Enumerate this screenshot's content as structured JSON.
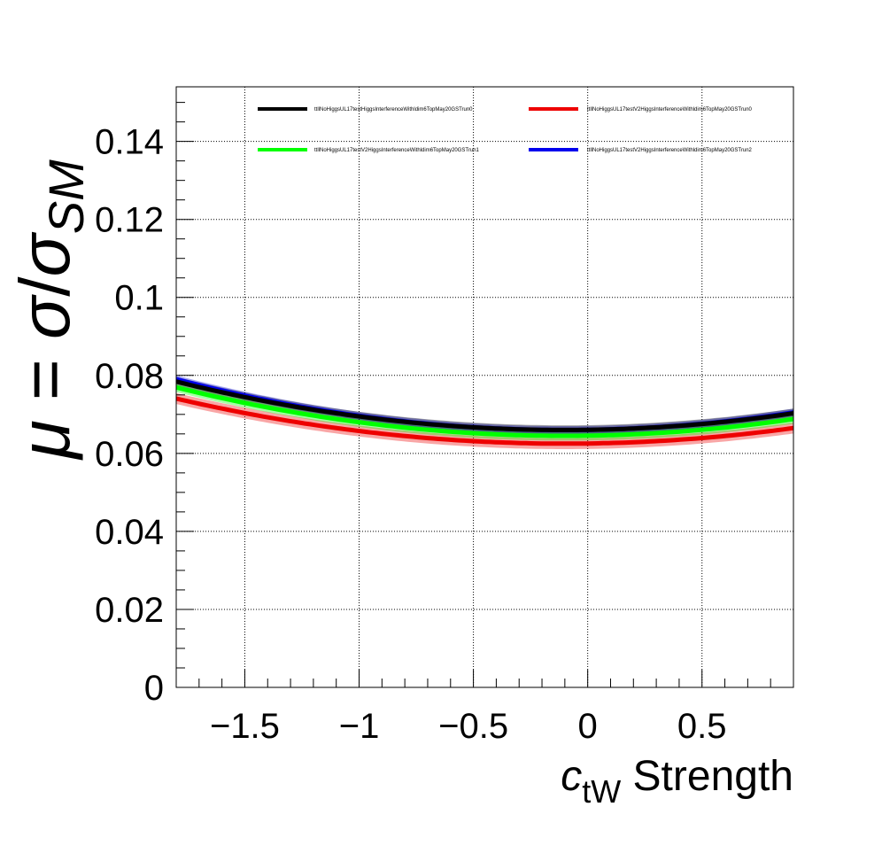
{
  "chart_data": {
    "type": "line",
    "xlabel": {
      "symbol": "c",
      "subscript": "tW",
      "suffix": " Strength"
    },
    "ylabel": {
      "mu": "μ",
      "eq": " = ",
      "sigma": "σ",
      "slash": "/",
      "sigma2": "σ",
      "subscript": "SM"
    },
    "xlim": [
      -1.8,
      0.9
    ],
    "ylim": [
      0,
      0.154
    ],
    "xticks": [
      -1.5,
      -1,
      -0.5,
      0,
      0.5
    ],
    "xtick_labels": [
      "−1.5",
      "−1",
      "−0.5",
      "0",
      "0.5"
    ],
    "yticks": [
      0,
      0.02,
      0.04,
      0.06,
      0.08,
      0.1,
      0.12,
      0.14
    ],
    "ytick_labels": [
      "0",
      "0.02",
      "0.04",
      "0.06",
      "0.08",
      "0.1",
      "0.12",
      "0.14"
    ],
    "grid": true,
    "legend": "top",
    "series": [
      {
        "name": "ttllNoHiggsUL17testHiggsInterferenceWithldim6TopMay20GSTrun0",
        "color": "#000000",
        "a": 0.066,
        "x0": -0.1,
        "c": 0.0043,
        "band": 0.0012
      },
      {
        "name": "ttllNoHiggsUL17testV2HiggsInterferenceWithldim6TopMay20GSTrun0",
        "color": "#ee0000",
        "a": 0.0625,
        "x0": -0.1,
        "c": 0.004,
        "band": 0.0014
      },
      {
        "name": "ttllNoHiggsUL17testV2HiggsInterferenceWithldim6TopMay20GSTrun1",
        "color": "#00ff00",
        "a": 0.0645,
        "x0": -0.1,
        "c": 0.0043,
        "band": 0.0012
      },
      {
        "name": "ttllNoHiggsUL17testV2HiggsInterferenceWithldim6TopMay20GSTrun2",
        "color": "#0000ee",
        "a": 0.066,
        "x0": -0.1,
        "c": 0.0045,
        "band": 0.001
      }
    ]
  }
}
